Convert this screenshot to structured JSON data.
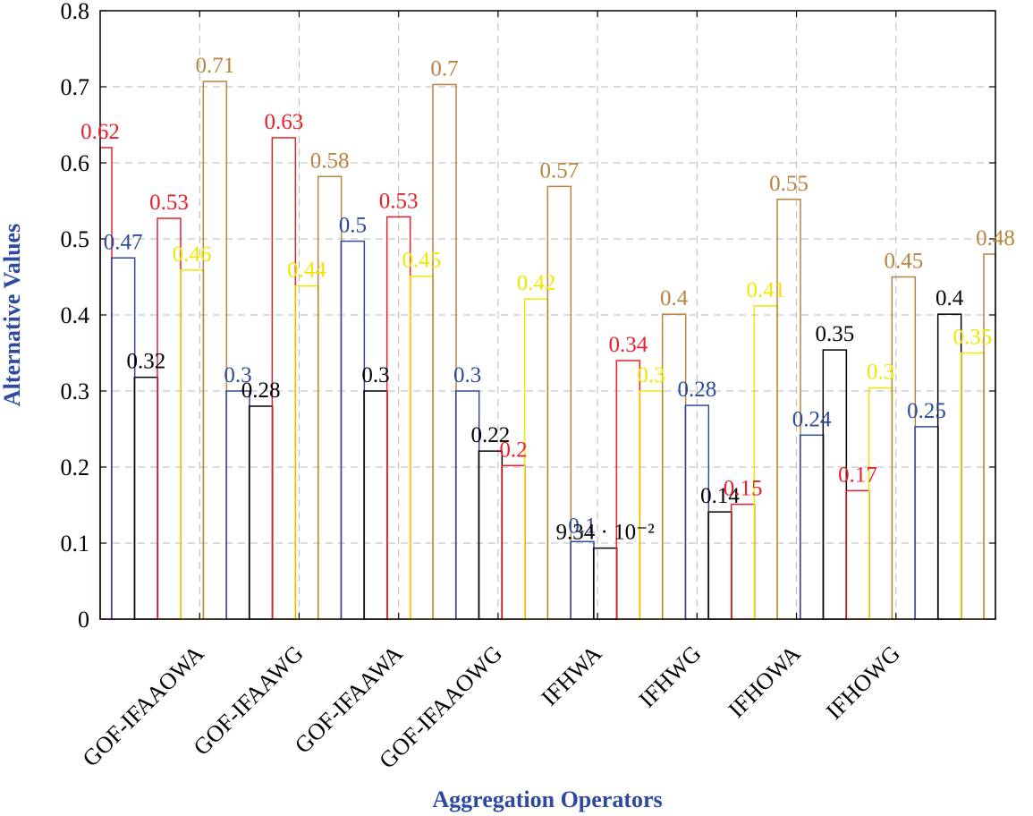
{
  "chart_data": {
    "type": "bar",
    "title": "",
    "xlabel": "Aggregation Operators",
    "ylabel": "Alternative Values",
    "ylim": [
      0,
      0.8
    ],
    "yticks": [
      "0",
      "0.1",
      "0.2",
      "0.3",
      "0.4",
      "0.5",
      "0.6",
      "0.7",
      "0.8"
    ],
    "grid": true,
    "categories": [
      "GOF-IFAAOWA",
      "GOF-IFAAWG",
      "GOF-IFAAWA",
      "GOF-IFAAOWG",
      "IFHWA",
      "IFHWG",
      "IFHOWA",
      "IFHOWG"
    ],
    "colors": [
      "#2e4a9e",
      "#000000",
      "#e8202a",
      "#f2e600",
      "#b8843f"
    ],
    "labels": [
      "0.62",
      "0.47",
      "0.32",
      "0.53",
      "0.46",
      "0.71",
      "0.3",
      "0.28",
      "0.63",
      "0.44",
      "0.58",
      "0.5",
      "0.3",
      "0.53",
      "0.45",
      "0.7",
      "0.3",
      "0.22",
      "0.2",
      "0.42",
      "0.57",
      "0.1",
      "9.34 · 10⁻²",
      "0.34",
      "0.3",
      "0.4",
      "0.28",
      "0.14",
      "0.15",
      "0.41",
      "0.55",
      "0.24",
      "0.35",
      "0.17",
      "0.3",
      "0.45",
      "0.25",
      "0.4",
      "0.35",
      "0.48"
    ],
    "bars": [
      {
        "value": 0.62,
        "color": 2,
        "label": 0
      },
      {
        "value": 0.475,
        "color": 0,
        "label": 1
      },
      {
        "value": 0.318,
        "color": 1,
        "label": 2
      },
      {
        "value": 0.527,
        "color": 2,
        "label": 3
      },
      {
        "value": 0.459,
        "color": 3,
        "label": 4
      },
      {
        "value": 0.707,
        "color": 4,
        "label": 5
      },
      {
        "value": 0.3,
        "color": 0,
        "label": 6
      },
      {
        "value": 0.28,
        "color": 1,
        "label": 7
      },
      {
        "value": 0.633,
        "color": 2,
        "label": 8
      },
      {
        "value": 0.438,
        "color": 3,
        "label": 9
      },
      {
        "value": 0.582,
        "color": 4,
        "label": 10
      },
      {
        "value": 0.497,
        "color": 0,
        "label": 11
      },
      {
        "value": 0.3,
        "color": 1,
        "label": 12
      },
      {
        "value": 0.529,
        "color": 2,
        "label": 13
      },
      {
        "value": 0.451,
        "color": 3,
        "label": 14
      },
      {
        "value": 0.703,
        "color": 4,
        "label": 15
      },
      {
        "value": 0.3,
        "color": 0,
        "label": 16
      },
      {
        "value": 0.221,
        "color": 1,
        "label": 17
      },
      {
        "value": 0.202,
        "color": 2,
        "label": 18
      },
      {
        "value": 0.421,
        "color": 3,
        "label": 19
      },
      {
        "value": 0.569,
        "color": 4,
        "label": 20
      },
      {
        "value": 0.102,
        "color": 0,
        "label": 21
      },
      {
        "value": 0.0934,
        "color": 1,
        "label": 22
      },
      {
        "value": 0.34,
        "color": 2,
        "label": 23
      },
      {
        "value": 0.3,
        "color": 3,
        "label": 24
      },
      {
        "value": 0.401,
        "color": 4,
        "label": 25
      },
      {
        "value": 0.281,
        "color": 0,
        "label": 26
      },
      {
        "value": 0.141,
        "color": 1,
        "label": 27
      },
      {
        "value": 0.151,
        "color": 2,
        "label": 28
      },
      {
        "value": 0.412,
        "color": 3,
        "label": 29
      },
      {
        "value": 0.552,
        "color": 4,
        "label": 30
      },
      {
        "value": 0.242,
        "color": 0,
        "label": 31
      },
      {
        "value": 0.354,
        "color": 1,
        "label": 32
      },
      {
        "value": 0.169,
        "color": 2,
        "label": 33
      },
      {
        "value": 0.304,
        "color": 3,
        "label": 34
      },
      {
        "value": 0.45,
        "color": 4,
        "label": 35
      },
      {
        "value": 0.253,
        "color": 0,
        "label": 36
      },
      {
        "value": 0.401,
        "color": 1,
        "label": 37
      },
      {
        "value": 0.35,
        "color": 3,
        "label": 38
      },
      {
        "value": 0.48,
        "color": 4,
        "label": 39
      }
    ]
  }
}
